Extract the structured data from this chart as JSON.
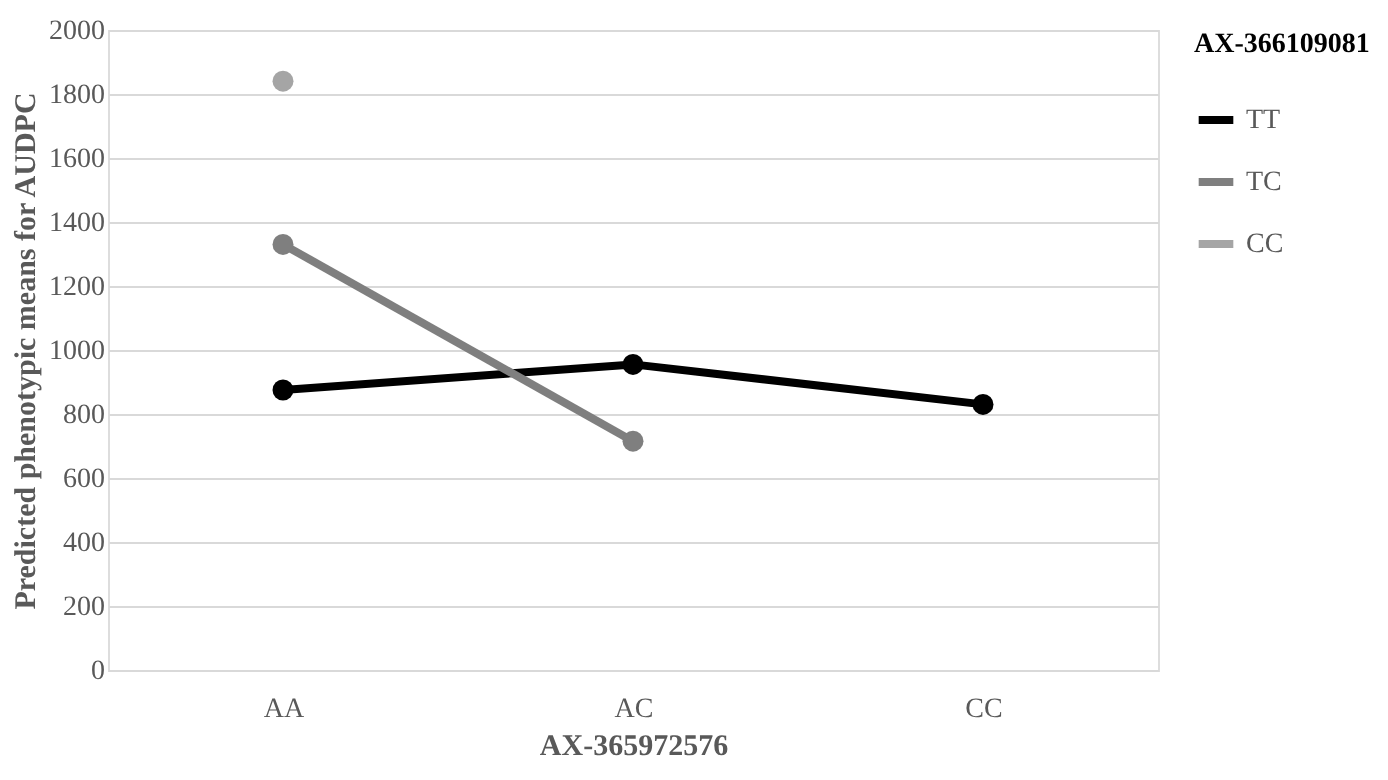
{
  "chart_data": {
    "type": "line",
    "xlabel": "AX-365972576",
    "ylabel": "Predicted phenotypic means for AUDPC",
    "legend_title": "AX-366109081",
    "categories": [
      "AA",
      "AC",
      "CC"
    ],
    "series": [
      {
        "name": "TT",
        "color": "#000000",
        "values": [
          875,
          955,
          830
        ]
      },
      {
        "name": "TC",
        "color": "#7f7f7f",
        "values": [
          1330,
          715,
          null
        ]
      },
      {
        "name": "CC",
        "color": "#a5a5a5",
        "values": [
          1840,
          null,
          null
        ]
      }
    ],
    "ylim": [
      0,
      2000
    ],
    "yticks": [
      0,
      200,
      400,
      600,
      800,
      1000,
      1200,
      1400,
      1600,
      1800,
      2000
    ],
    "grid": "y",
    "legend": "right",
    "marker": "circle",
    "line_style": "solid"
  }
}
